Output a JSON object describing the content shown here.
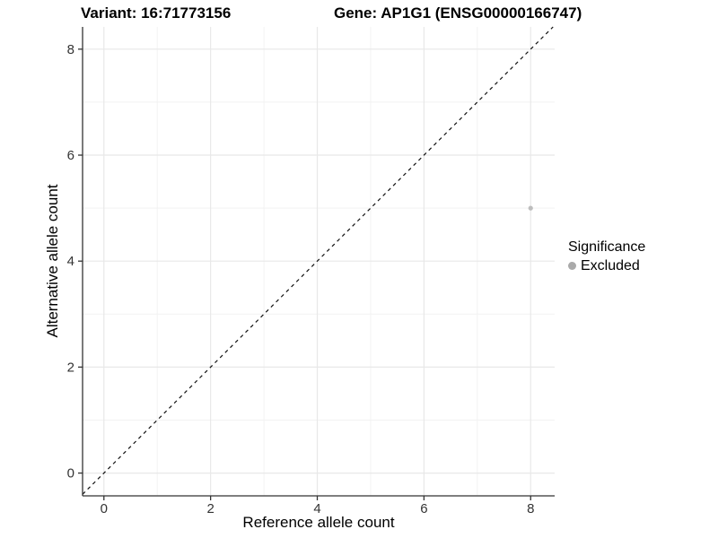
{
  "chart_data": {
    "type": "scatter",
    "titles": {
      "left": "Variant: 16:71773156",
      "right": "Gene: AP1G1 (ENSG00000166747)"
    },
    "xlabel": "Reference allele count",
    "ylabel": "Alternative allele count",
    "xlim": [
      -0.4,
      8.45
    ],
    "ylim": [
      -0.43,
      8.42
    ],
    "x_ticks": [
      0,
      2,
      4,
      6,
      8
    ],
    "y_ticks": [
      0,
      2,
      4,
      6,
      8
    ],
    "x_minor": [
      1,
      3,
      5,
      7
    ],
    "y_minor": [
      1,
      3,
      5,
      7
    ],
    "grid": true,
    "points": [
      {
        "x": 8,
        "y": 5,
        "series": "Excluded"
      }
    ],
    "reference_line": {
      "slope": 1,
      "intercept": 0,
      "style": "dashed"
    },
    "legend": {
      "position": "right",
      "title": "Significance",
      "items": [
        {
          "label": "Excluded",
          "color": "#aaaaaa"
        }
      ]
    }
  },
  "colors": {
    "background": "#ffffff",
    "grid_major": "#e8e8e8",
    "grid_minor": "#f2f2f2",
    "axis_line": "#333333",
    "tick_text": "#333333",
    "point": "#bdbdbd",
    "ref_line": "#111111"
  }
}
